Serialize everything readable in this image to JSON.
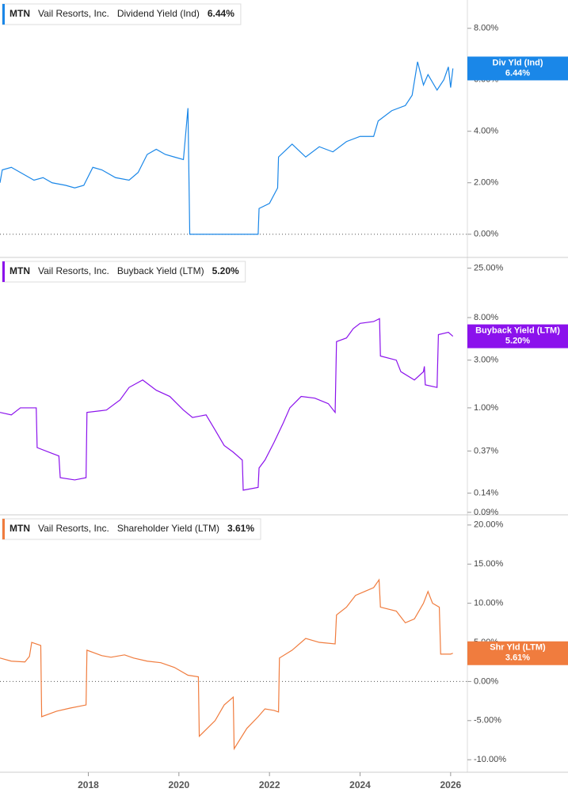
{
  "chart_data": [
    {
      "type": "line",
      "ticker": "MTN",
      "company": "Vail Resorts, Inc.",
      "log_scale": false,
      "xlim": [
        2016.05,
        2026.37
      ],
      "ylim": [
        -0.9,
        9.1
      ],
      "yticks": [
        {
          "value": 0,
          "label": "0.00%"
        },
        {
          "value": 2,
          "label": "2.00%"
        },
        {
          "value": 4,
          "label": "4.00%"
        },
        {
          "value": 6,
          "label": "6.00%"
        },
        {
          "value": 8,
          "label": "8.00%"
        }
      ],
      "series": [
        {
          "name": "Dividend Yield (Ind)",
          "flag_label": "Div Yld (Ind)",
          "last_value_label": "6.44%",
          "color": "#1a87e8",
          "x": [
            2016.05,
            2016.1,
            2016.3,
            2016.5,
            2016.8,
            2017.0,
            2017.2,
            2017.5,
            2017.7,
            2017.9,
            2018.1,
            2018.3,
            2018.6,
            2018.9,
            2019.1,
            2019.3,
            2019.5,
            2019.7,
            2019.9,
            2020.1,
            2020.2,
            2020.24,
            2021.75,
            2021.77,
            2022.0,
            2022.18,
            2022.2,
            2022.5,
            2022.8,
            2023.1,
            2023.4,
            2023.7,
            2024.0,
            2024.3,
            2024.4,
            2024.7,
            2025.0,
            2025.15,
            2025.27,
            2025.4,
            2025.5,
            2025.7,
            2025.85,
            2025.95,
            2026.0,
            2026.05
          ],
          "values": [
            2.0,
            2.5,
            2.6,
            2.4,
            2.1,
            2.2,
            2.0,
            1.9,
            1.8,
            1.9,
            2.6,
            2.5,
            2.2,
            2.1,
            2.4,
            3.1,
            3.3,
            3.1,
            3.0,
            2.9,
            4.9,
            0,
            0,
            1.0,
            1.2,
            1.8,
            3.0,
            3.5,
            3.0,
            3.4,
            3.2,
            3.6,
            3.8,
            3.8,
            4.4,
            4.8,
            5.0,
            5.4,
            6.7,
            5.8,
            6.2,
            5.6,
            6.0,
            6.5,
            5.7,
            6.44
          ]
        }
      ]
    },
    {
      "type": "line",
      "ticker": "MTN",
      "company": "Vail Resorts, Inc.",
      "log_scale": true,
      "xlim": [
        2016.05,
        2026.37
      ],
      "ylim": [
        0.085,
        32
      ],
      "yticks": [
        {
          "value": 0.09,
          "label": "0.09%"
        },
        {
          "value": 0.14,
          "label": "0.14%"
        },
        {
          "value": 0.37,
          "label": "0.37%"
        },
        {
          "value": 1,
          "label": "1.00%"
        },
        {
          "value": 3,
          "label": "3.00%"
        },
        {
          "value": 8,
          "label": "8.00%"
        },
        {
          "value": 25,
          "label": "25.00%"
        }
      ],
      "series": [
        {
          "name": "Buyback Yield (LTM)",
          "flag_label": "Buyback Yield (LTM)",
          "last_value_label": "5.20%",
          "color": "#8b12ec",
          "x": [
            2016.05,
            2016.3,
            2016.5,
            2016.85,
            2016.87,
            2017.2,
            2017.35,
            2017.38,
            2017.7,
            2017.95,
            2017.97,
            2018.4,
            2018.7,
            2018.9,
            2019.2,
            2019.5,
            2019.8,
            2020.1,
            2020.3,
            2020.6,
            2020.8,
            2021.0,
            2021.2,
            2021.4,
            2021.42,
            2021.75,
            2021.77,
            2021.9,
            2022.1,
            2022.3,
            2022.45,
            2022.7,
            2023.0,
            2023.3,
            2023.45,
            2023.48,
            2023.7,
            2023.85,
            2024.0,
            2024.3,
            2024.43,
            2024.45,
            2024.8,
            2024.9,
            2025.2,
            2025.4,
            2025.42,
            2025.44,
            2025.7,
            2025.73,
            2025.95,
            2026.05
          ],
          "values": [
            0.9,
            0.85,
            1.0,
            1.0,
            0.4,
            0.35,
            0.33,
            0.2,
            0.19,
            0.2,
            0.9,
            0.95,
            1.2,
            1.6,
            1.9,
            1.5,
            1.3,
            0.95,
            0.8,
            0.85,
            0.6,
            0.42,
            0.36,
            0.3,
            0.15,
            0.16,
            0.25,
            0.3,
            0.45,
            0.7,
            1.0,
            1.3,
            1.25,
            1.1,
            0.9,
            4.6,
            5.0,
            6.2,
            7.0,
            7.3,
            7.8,
            3.3,
            3.0,
            2.3,
            1.9,
            2.3,
            2.6,
            1.7,
            1.6,
            5.4,
            5.7,
            5.2
          ]
        }
      ]
    },
    {
      "type": "line",
      "ticker": "MTN",
      "company": "Vail Resorts, Inc.",
      "log_scale": false,
      "xlim": [
        2016.05,
        2026.37
      ],
      "ylim": [
        -11.6,
        21.3
      ],
      "xticks": [
        2018,
        2020,
        2022,
        2024,
        2026
      ],
      "yticks": [
        {
          "value": -10,
          "label": "-10.00%"
        },
        {
          "value": -5,
          "label": "-5.00%"
        },
        {
          "value": 0,
          "label": "0.00%"
        },
        {
          "value": 5,
          "label": "5.00%"
        },
        {
          "value": 10,
          "label": "10.00%"
        },
        {
          "value": 15,
          "label": "15.00%"
        },
        {
          "value": 20,
          "label": "20.00%"
        }
      ],
      "series": [
        {
          "name": "Shareholder Yield (LTM)",
          "flag_label": "Shr Yld (LTM)",
          "last_value_label": "3.61%",
          "color": "#f07c3e",
          "x": [
            2016.05,
            2016.3,
            2016.6,
            2016.7,
            2016.75,
            2016.95,
            2016.97,
            2017.3,
            2017.6,
            2017.95,
            2017.97,
            2018.3,
            2018.5,
            2018.8,
            2019.0,
            2019.3,
            2019.6,
            2019.9,
            2020.2,
            2020.43,
            2020.45,
            2020.8,
            2021.0,
            2021.2,
            2021.22,
            2021.5,
            2021.75,
            2021.9,
            2022.1,
            2022.2,
            2022.22,
            2022.5,
            2022.8,
            2023.1,
            2023.45,
            2023.48,
            2023.7,
            2023.9,
            2024.1,
            2024.3,
            2024.42,
            2024.45,
            2024.8,
            2025.0,
            2025.2,
            2025.4,
            2025.5,
            2025.6,
            2025.75,
            2025.78,
            2026.0,
            2026.05
          ],
          "values": [
            3.0,
            2.6,
            2.5,
            3.2,
            5.0,
            4.6,
            -4.5,
            -3.8,
            -3.4,
            -3.0,
            4.0,
            3.3,
            3.1,
            3.4,
            3.0,
            2.6,
            2.4,
            1.8,
            0.8,
            0.6,
            -7.0,
            -5.0,
            -3.0,
            -2.0,
            -8.6,
            -6.0,
            -4.5,
            -3.5,
            -3.7,
            -3.9,
            3.0,
            4.0,
            5.5,
            5.0,
            4.8,
            8.5,
            9.5,
            11.0,
            11.5,
            12.0,
            13.0,
            9.5,
            9.0,
            7.5,
            8.0,
            10.0,
            11.5,
            10.0,
            9.5,
            3.5,
            3.5,
            3.61
          ]
        }
      ]
    }
  ]
}
